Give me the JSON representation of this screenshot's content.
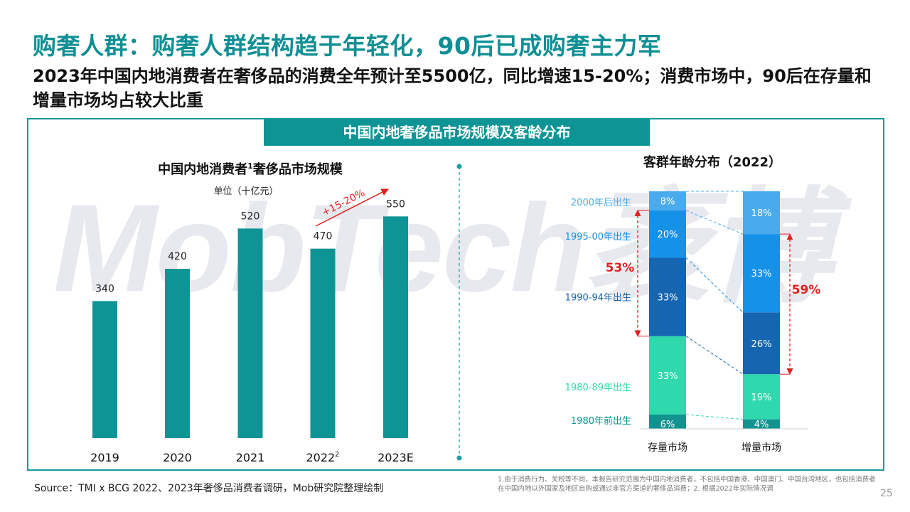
{
  "header": {
    "title": "购奢人群：购奢人群结构趋于年轻化，90后已成购奢主力军",
    "subtitle": "2023年中国内地消费者在奢侈品的消费全年预计至5500亿，同比增速15-20%；消费市场中，90后在存量和增量市场均占较大比重",
    "frame_title": "中国内地奢侈品市场规模及客龄分布",
    "watermark": "MobTech袤博"
  },
  "footer": {
    "source": "Source：TMI x BCG 2022、2023年奢侈品消费者调研，Mob研究院整理绘制",
    "notes": "1.由于消费行为、关税等不同，本报告研究范围为中国内地消费者，不包括中国香港、中国澳门、中国台湾地区，也包括消费者在中国内地以外国家及地区自购或通过非官方渠道的奢侈品消费；2. 根据2022年实际情况调",
    "page_number": "25"
  },
  "chart_data": [
    {
      "type": "bar",
      "title": "中国内地消费者",
      "title_sup": "1",
      "title_suffix": "奢侈品市场规模",
      "unit": "单位（十亿元）",
      "categories": [
        "2019",
        "2020",
        "2021",
        "2022",
        "2023E"
      ],
      "category_sups": [
        "",
        "",
        "",
        "2",
        ""
      ],
      "values": [
        340,
        420,
        520,
        470,
        550
      ],
      "ylim": [
        0,
        600
      ],
      "color": "#0f9496",
      "annotation": "+15-20%",
      "annotation_color": "#e02020"
    },
    {
      "type": "bar",
      "stacked": true,
      "title": "客群年龄分布（2022）",
      "categories": [
        "存量市场",
        "增量市场"
      ],
      "series": [
        {
          "name": "1980年前出生",
          "values": [
            6,
            4
          ],
          "color": "#11938f",
          "label_color": "#11938f"
        },
        {
          "name": "1980-89年出生",
          "values": [
            33,
            19
          ],
          "color": "#2fd9ad",
          "label_color": "#2fd9ad"
        },
        {
          "name": "1990-94年出生",
          "values": [
            33,
            26
          ],
          "color": "#1565b0",
          "label_color": "#1565b0"
        },
        {
          "name": "1995-00年出生",
          "values": [
            20,
            33
          ],
          "color": "#1591e8",
          "label_color": "#1591e8"
        },
        {
          "name": "2000年后出生",
          "values": [
            8,
            18
          ],
          "color": "#4aabec",
          "label_color": "#4aabec"
        }
      ],
      "brackets": [
        {
          "label": "53%",
          "category": "存量市场"
        },
        {
          "label": "59%",
          "category": "增量市场"
        }
      ],
      "bracket_color": "#e02020"
    }
  ]
}
